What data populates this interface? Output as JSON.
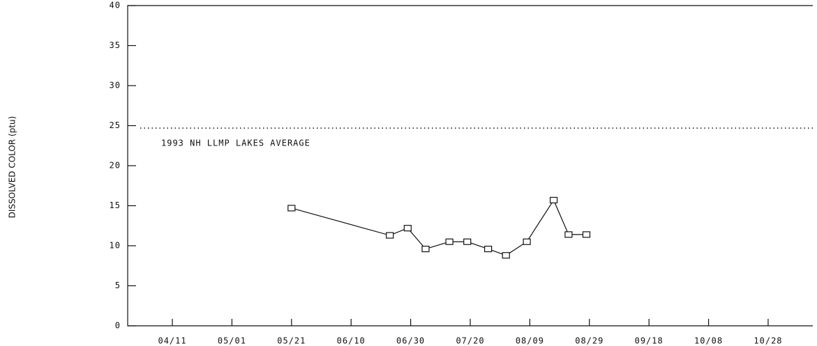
{
  "chart_data": {
    "type": "line",
    "y_label": "DISSOLVED COLOR (ptu)",
    "x": [
      141,
      174,
      180,
      186,
      194,
      200,
      207,
      213,
      220,
      229,
      234,
      240
    ],
    "series": [
      {
        "color": "#111111",
        "values": [
          14.7,
          11.3,
          12.2,
          9.6,
          10.5,
          10.5,
          9.6,
          8.8,
          10.5,
          15.7,
          11.4,
          11.4
        ]
      }
    ],
    "xlim": [
      86,
      316
    ],
    "xticks": [
      {
        "value": 101,
        "label": "04/11"
      },
      {
        "value": 121,
        "label": "05/01"
      },
      {
        "value": 141,
        "label": "05/21"
      },
      {
        "value": 161,
        "label": "06/10"
      },
      {
        "value": 181,
        "label": "06/30"
      },
      {
        "value": 201,
        "label": "07/20"
      },
      {
        "value": 221,
        "label": "08/09"
      },
      {
        "value": 241,
        "label": "08/29"
      },
      {
        "value": 261,
        "label": "09/18"
      },
      {
        "value": 281,
        "label": "10/08"
      },
      {
        "value": 301,
        "label": "10/28"
      }
    ],
    "ylim": [
      0,
      40
    ],
    "yticks": [
      0,
      5,
      10,
      15,
      20,
      25,
      30,
      35,
      40
    ],
    "reference": {
      "value": 24.7,
      "label": "1993 NH LLMP LAKES AVERAGE"
    },
    "marker": "square"
  }
}
